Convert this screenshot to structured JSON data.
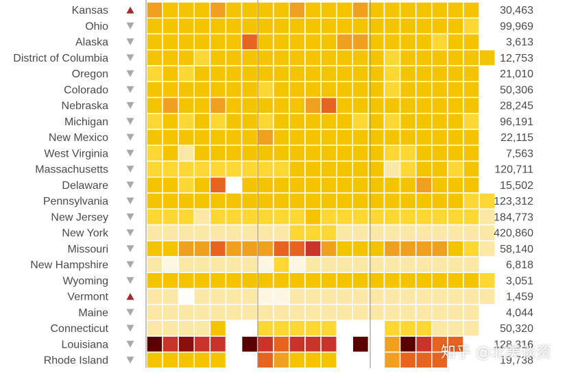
{
  "chart_data": {
    "type": "heatmap",
    "color_scale": [
      "#fdf6e3",
      "#fbe8a6",
      "#fdd835",
      "#f5c400",
      "#f0a020",
      "#e76320",
      "#c8332a",
      "#8b0f0f",
      "#5a0000"
    ],
    "rows": [
      {
        "state": "Kansas",
        "trend": "up",
        "total": "30,463",
        "values": [
          4,
          3,
          3,
          3,
          4,
          3,
          3,
          3,
          3,
          4,
          3,
          3,
          3,
          4,
          3,
          3,
          3,
          3,
          3,
          3,
          3,
          null
        ]
      },
      {
        "state": "Ohio",
        "trend": "down",
        "total": "99,969",
        "values": [
          3,
          3,
          3,
          3,
          3,
          3,
          3,
          3,
          3,
          3,
          3,
          3,
          3,
          3,
          3,
          3,
          3,
          3,
          3,
          3,
          2,
          null
        ]
      },
      {
        "state": "Alaska",
        "trend": "down",
        "total": "3,613",
        "values": [
          3,
          3,
          3,
          3,
          3,
          3,
          5,
          3,
          3,
          3,
          3,
          3,
          4,
          4,
          3,
          3,
          3,
          3,
          2,
          3,
          3,
          null
        ]
      },
      {
        "state": "District of Columbia",
        "trend": "down",
        "total": "12,753",
        "values": [
          3,
          3,
          3,
          2,
          3,
          3,
          3,
          3,
          3,
          3,
          3,
          3,
          3,
          3,
          3,
          2,
          3,
          3,
          3,
          3,
          3,
          3
        ]
      },
      {
        "state": "Oregon",
        "trend": "down",
        "total": "21,010",
        "values": [
          2,
          3,
          2,
          3,
          3,
          3,
          3,
          3,
          3,
          3,
          3,
          3,
          3,
          3,
          3,
          2,
          3,
          3,
          3,
          3,
          3,
          null
        ]
      },
      {
        "state": "Colorado",
        "trend": "down",
        "total": "50,306",
        "values": [
          3,
          3,
          3,
          3,
          3,
          3,
          3,
          2,
          3,
          3,
          3,
          3,
          3,
          3,
          3,
          2,
          3,
          3,
          3,
          3,
          3,
          null
        ]
      },
      {
        "state": "Nebraska",
        "trend": "down",
        "total": "28,245",
        "values": [
          3,
          4,
          3,
          3,
          4,
          3,
          3,
          3,
          3,
          3,
          4,
          5,
          3,
          3,
          3,
          3,
          3,
          3,
          3,
          3,
          3,
          null
        ]
      },
      {
        "state": "Michigan",
        "trend": "down",
        "total": "96,191",
        "values": [
          2,
          3,
          2,
          3,
          2,
          3,
          3,
          2,
          3,
          3,
          3,
          3,
          3,
          2,
          3,
          2,
          3,
          3,
          3,
          3,
          2,
          null
        ]
      },
      {
        "state": "New Mexico",
        "trend": "down",
        "total": "22,115",
        "values": [
          3,
          3,
          3,
          3,
          3,
          3,
          3,
          4,
          3,
          3,
          3,
          3,
          3,
          3,
          3,
          3,
          3,
          3,
          3,
          3,
          3,
          null
        ]
      },
      {
        "state": "West Virginia",
        "trend": "down",
        "total": "7,563",
        "values": [
          2,
          3,
          1,
          3,
          3,
          3,
          3,
          3,
          3,
          3,
          3,
          3,
          3,
          3,
          3,
          2,
          2,
          3,
          3,
          3,
          3,
          null
        ]
      },
      {
        "state": "Massachusetts",
        "trend": "down",
        "total": "120,711",
        "values": [
          2,
          2,
          2,
          2,
          2,
          2,
          2,
          2,
          2,
          3,
          3,
          3,
          3,
          3,
          3,
          1,
          2,
          3,
          3,
          2,
          3,
          null
        ]
      },
      {
        "state": "Delaware",
        "trend": "down",
        "total": "15,502",
        "values": [
          3,
          3,
          2,
          3,
          5,
          null,
          3,
          3,
          3,
          3,
          3,
          3,
          3,
          3,
          3,
          3,
          3,
          4,
          3,
          3,
          3,
          null
        ]
      },
      {
        "state": "Pennsylvania",
        "trend": "down",
        "total": "123,312",
        "values": [
          3,
          3,
          3,
          3,
          3,
          3,
          3,
          3,
          3,
          3,
          3,
          3,
          3,
          3,
          3,
          3,
          3,
          3,
          3,
          3,
          2,
          2
        ]
      },
      {
        "state": "New Jersey",
        "trend": "down",
        "total": "184,773",
        "values": [
          2,
          2,
          2,
          1,
          2,
          2,
          2,
          2,
          2,
          2,
          3,
          2,
          2,
          2,
          2,
          2,
          2,
          2,
          2,
          2,
          2,
          1
        ]
      },
      {
        "state": "New York",
        "trend": "down",
        "total": "420,860",
        "values": [
          1,
          1,
          1,
          1,
          1,
          1,
          1,
          1,
          1,
          2,
          2,
          2,
          1,
          1,
          1,
          1,
          1,
          1,
          1,
          1,
          1,
          1
        ]
      },
      {
        "state": "Missouri",
        "trend": "down",
        "total": "58,140",
        "values": [
          3,
          3,
          4,
          4,
          5,
          4,
          4,
          4,
          5,
          5,
          6,
          4,
          3,
          3,
          3,
          4,
          4,
          4,
          4,
          3,
          2,
          1
        ]
      },
      {
        "state": "New Hampshire",
        "trend": "down",
        "total": "6,818",
        "values": [
          1,
          0,
          1,
          1,
          1,
          1,
          1,
          0,
          2,
          0,
          1,
          1,
          1,
          1,
          1,
          1,
          1,
          1,
          1,
          1,
          1,
          null
        ]
      },
      {
        "state": "Wyoming",
        "trend": "down",
        "total": "3,051",
        "values": [
          3,
          3,
          3,
          3,
          3,
          3,
          3,
          3,
          3,
          3,
          3,
          3,
          3,
          3,
          3,
          3,
          3,
          3,
          3,
          3,
          3,
          2
        ]
      },
      {
        "state": "Vermont",
        "trend": "up",
        "total": "1,459",
        "values": [
          1,
          1,
          null,
          1,
          1,
          1,
          1,
          0,
          0,
          1,
          1,
          1,
          1,
          1,
          1,
          1,
          1,
          1,
          1,
          1,
          1,
          1
        ]
      },
      {
        "state": "Maine",
        "trend": "down",
        "total": "4,044",
        "values": [
          1,
          1,
          1,
          1,
          1,
          1,
          1,
          1,
          1,
          1,
          1,
          1,
          1,
          1,
          1,
          1,
          1,
          1,
          1,
          1,
          1,
          null
        ]
      },
      {
        "state": "Connecticut",
        "trend": "down",
        "total": "50,320",
        "values": [
          1,
          1,
          1,
          1,
          3,
          null,
          null,
          2,
          2,
          2,
          2,
          2,
          null,
          null,
          null,
          2,
          2,
          2,
          1,
          1,
          1,
          null
        ]
      },
      {
        "state": "Louisiana",
        "trend": "down",
        "total": "128,316",
        "values": [
          8,
          6,
          7,
          6,
          6,
          null,
          8,
          6,
          5,
          6,
          6,
          6,
          null,
          8,
          null,
          4,
          8,
          6,
          5,
          5,
          null,
          null
        ]
      },
      {
        "state": "Rhode Island",
        "trend": "down",
        "total": "19,738",
        "values": [
          3,
          3,
          3,
          3,
          3,
          null,
          null,
          5,
          4,
          3,
          3,
          3,
          null,
          null,
          null,
          4,
          5,
          5,
          5,
          null,
          null,
          null
        ]
      }
    ]
  }
}
